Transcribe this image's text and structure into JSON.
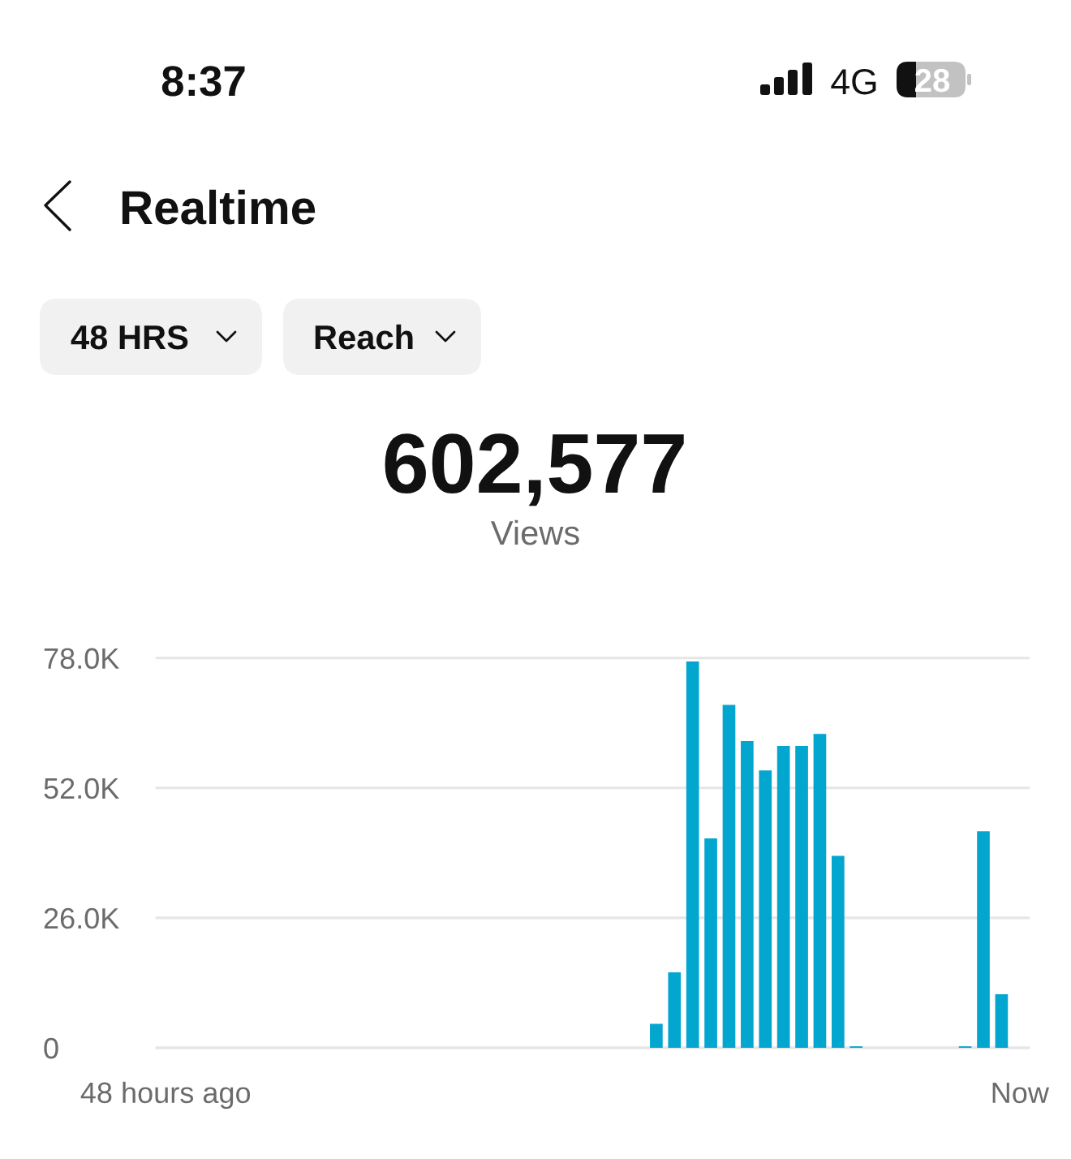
{
  "chart_data": {
    "type": "bar",
    "title": "Realtime",
    "subtitle": "602,577",
    "annotations": [
      "8:37",
      "4G",
      "28",
      "48 HRS",
      "Reach",
      "Views"
    ],
    "categories": [
      "48 hours ago",
      null,
      null,
      null,
      null,
      null,
      null,
      null,
      null,
      null,
      null,
      null,
      null,
      null,
      null,
      null,
      null,
      null,
      null,
      null,
      null,
      null,
      null,
      null,
      null,
      null,
      null,
      null,
      null,
      null,
      null,
      null,
      null,
      null,
      null,
      null,
      null,
      null,
      null,
      null,
      null,
      null,
      null,
      null,
      null,
      null,
      null,
      "Now"
    ],
    "values": [
      0,
      0,
      0,
      0,
      0,
      0,
      0,
      0,
      0,
      0,
      0,
      0,
      0,
      0,
      0,
      0,
      0,
      0,
      0,
      0,
      0,
      0,
      0,
      0,
      0,
      0,
      0,
      4800,
      15100,
      77300,
      41900,
      68600,
      61400,
      55500,
      60400,
      60400,
      62800,
      38400,
      300,
      0,
      0,
      0,
      0,
      0,
      300,
      43300,
      10700,
      0
    ],
    "color": "#03a6cf",
    "ylim": [
      0,
      78000
    ],
    "yticks": [
      0,
      {
        "value": 26000,
        "label": "26.0K"
      },
      {
        "value": 52000,
        "label": "52.0K"
      },
      {
        "value": 78000,
        "label": "78.0K"
      }
    ],
    "grid": "y"
  }
}
